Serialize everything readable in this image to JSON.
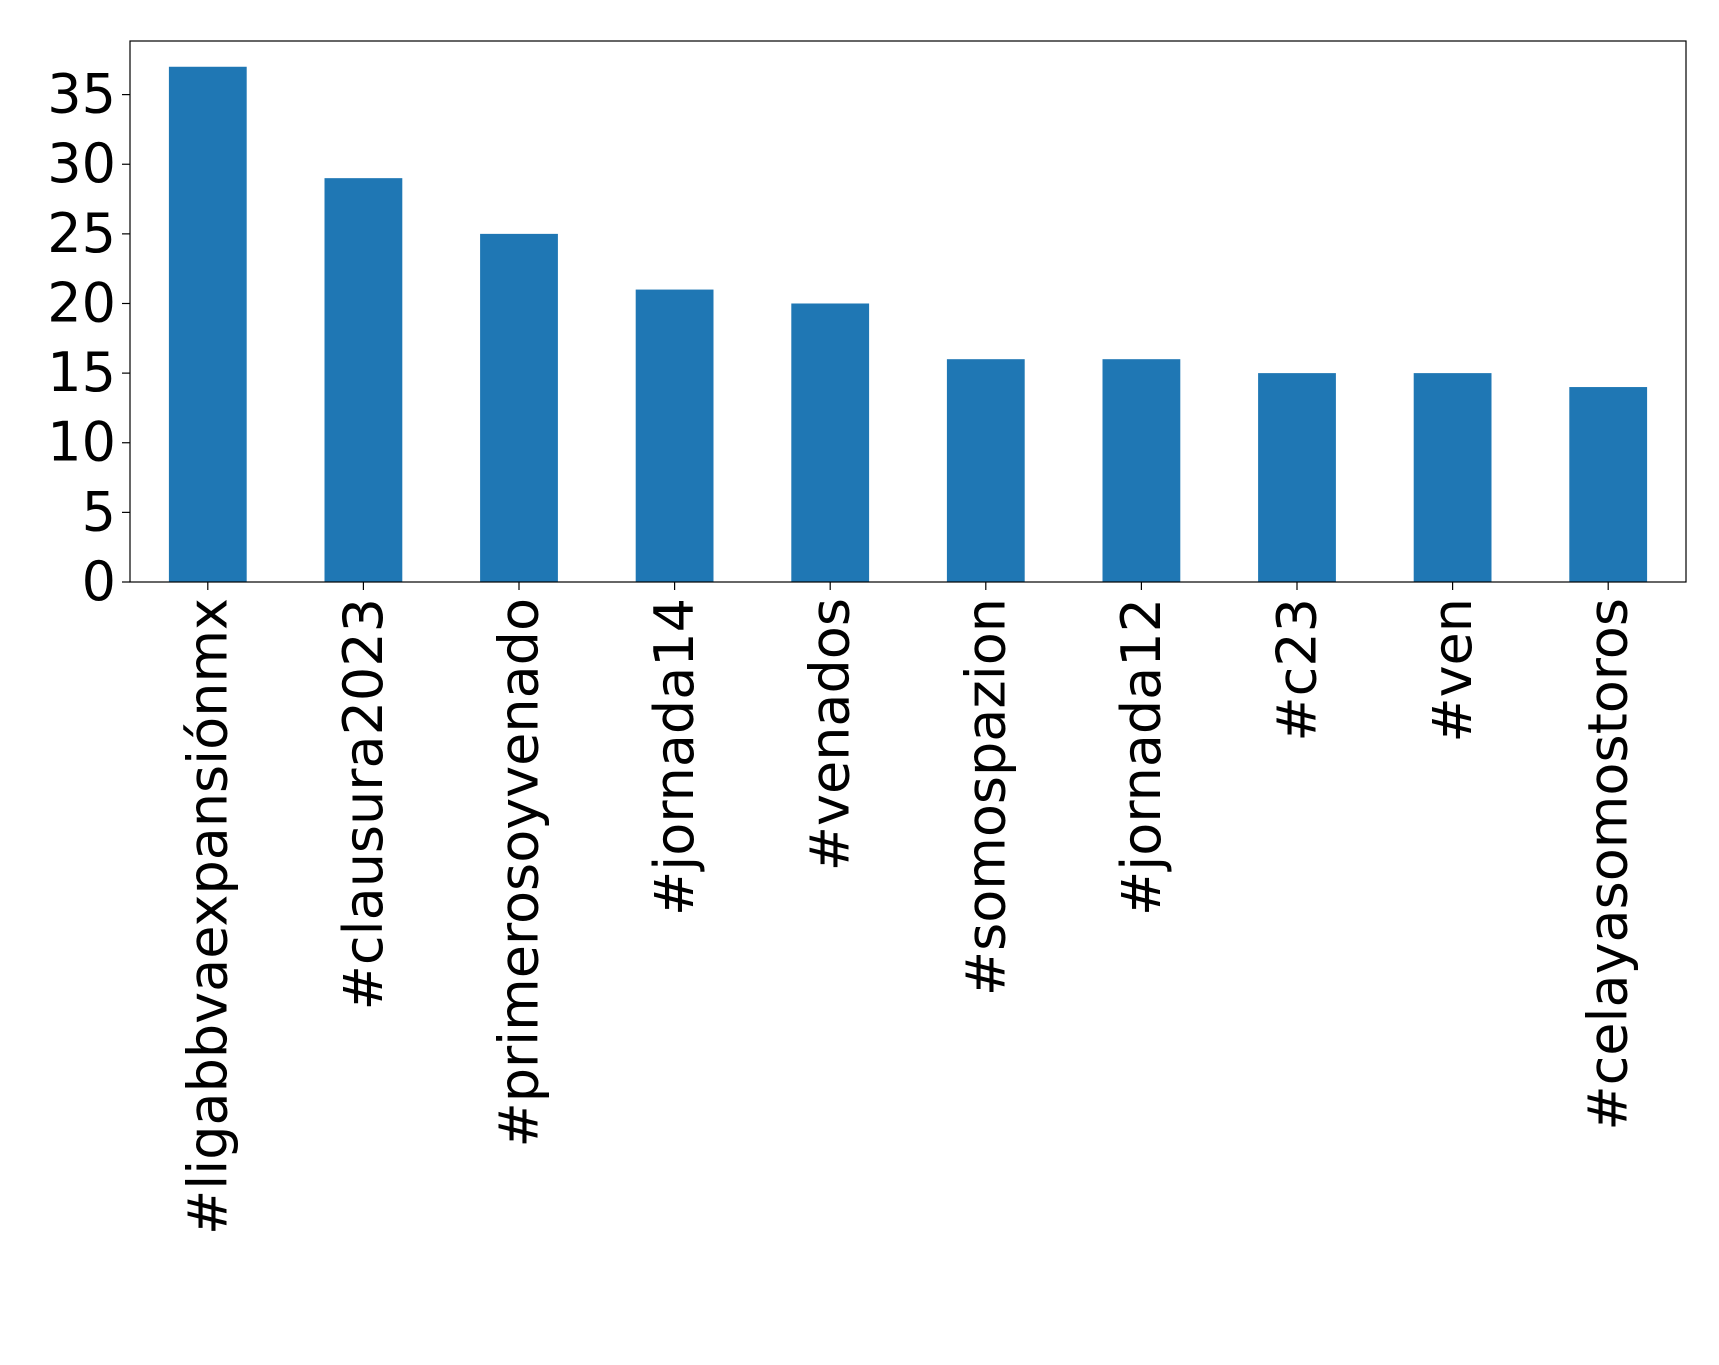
{
  "chart_data": {
    "type": "bar",
    "title": "",
    "xlabel": "",
    "ylabel": "",
    "categories": [
      "#ligabbvaexpansiónmx",
      "#clausura2023",
      "#primerosoyvenado",
      "#jornada14",
      "#venados",
      "#somospazion",
      "#jornada12",
      "#c23",
      "#ven",
      "#celayasomostoros"
    ],
    "values": [
      37,
      29,
      25,
      21,
      20,
      16,
      16,
      15,
      15,
      14
    ],
    "ylim": [
      0,
      38.85
    ],
    "yticks": [
      0,
      5,
      10,
      15,
      20,
      25,
      30,
      35
    ],
    "grid": false,
    "legend": "none",
    "colors": {
      "bar": "#1f77b4",
      "axes": "#000000",
      "background": "#ffffff"
    }
  }
}
